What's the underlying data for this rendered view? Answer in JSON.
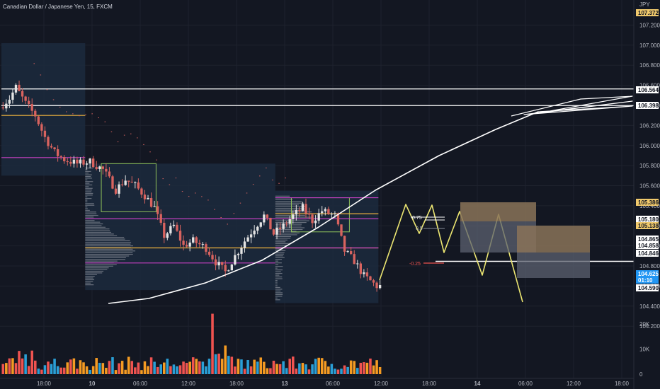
{
  "header": {
    "symbol_title": "Canadian Dollar / Japanese Yen, 15, FXCM"
  },
  "colors": {
    "background": "#131722",
    "grid": "#1e222d",
    "candle_up": "#e3e3e3",
    "candle_down": "#d8635f",
    "volume_blue": "#2a9fd6",
    "volume_red": "#ef5350",
    "volume_orange": "#f59b22",
    "yellow_line": "#ebe571",
    "orange_line": "#f0b33e",
    "magenta_line": "#c440c0",
    "white": "#ffffff"
  },
  "chart_data": {
    "type": "candlestick",
    "currency": "JPY",
    "price_axis": {
      "min": 104.3,
      "max": 107.45,
      "ticks": [
        "107.200",
        "107.000",
        "106.800",
        "106.600",
        "106.400",
        "106.200",
        "106.000",
        "105.800",
        "105.600",
        "105.400",
        "105.200",
        "105.000",
        "104.800",
        "104.600",
        "104.400",
        "104.200"
      ]
    },
    "volume_axis": {
      "ticks": [
        "20K",
        "10K",
        "0"
      ]
    },
    "time_axis": {
      "labels": [
        "18:00",
        "10",
        "06:00",
        "12:00",
        "18:00",
        "13",
        "06:00",
        "12:00",
        "18:00",
        "14",
        "06:00",
        "12:00",
        "18:00"
      ]
    },
    "price_tags": [
      {
        "label": "107.372",
        "value": 107.372,
        "bg": "#f0c96c",
        "fg": "#131722"
      },
      {
        "label": "106.564",
        "value": 106.564,
        "bg": "#ffffff",
        "fg": "#131722"
      },
      {
        "label": "106.398",
        "value": 106.398,
        "bg": "#ffffff",
        "fg": "#131722"
      },
      {
        "label": "105.386",
        "value": 105.386,
        "bg": "#f0c96c",
        "fg": "#131722"
      },
      {
        "label": "105.180",
        "value": 105.18,
        "bg": "#ffffff",
        "fg": "#131722"
      },
      {
        "label": "105.138",
        "value": 105.138,
        "bg": "#f0c96c",
        "fg": "#131722"
      },
      {
        "label": "104.865",
        "value": 104.865,
        "bg": "#ffffff",
        "fg": "#131722"
      },
      {
        "label": "104.858",
        "value": 104.858,
        "bg": "#ffffff",
        "fg": "#131722"
      },
      {
        "label": "104.846",
        "value": 104.846,
        "bg": "#ffffff",
        "fg": "#131722"
      },
      {
        "label": "104.625",
        "value": 104.625,
        "bg": "#2196f3",
        "fg": "#ffffff"
      },
      {
        "label": "01:10",
        "value": 104.61,
        "bg": "#2196f3",
        "fg": "#ffffff",
        "small": true
      },
      {
        "label": "104.590",
        "value": 104.59,
        "bg": "#ffffff",
        "fg": "#131722"
      }
    ],
    "fib_labels": [
      {
        "label": "0.75",
        "value": 105.2
      },
      {
        "label": "0.5",
        "value": 105.03
      },
      {
        "label": "-0.25",
        "value": 104.73
      }
    ],
    "horizontal_levels": [
      {
        "value": 106.564,
        "color": "white",
        "from_bar": 0,
        "to_end": true
      },
      {
        "value": 106.398,
        "color": "white",
        "from_bar": 0,
        "to_end": true
      },
      {
        "value": 106.3,
        "color": "orange",
        "from_bar": 0,
        "to_bar": 26
      },
      {
        "value": 105.88,
        "color": "magenta",
        "from_bar": 0,
        "to_bar": 26
      },
      {
        "value": 105.27,
        "color": "magenta",
        "from_bar": 26,
        "to_bar": 117
      },
      {
        "value": 104.98,
        "color": "orange",
        "from_bar": 26,
        "to_bar": 117
      },
      {
        "value": 104.83,
        "color": "magenta",
        "from_bar": 26,
        "to_bar": 85
      },
      {
        "value": 105.48,
        "color": "magenta",
        "from_bar": 85,
        "to_bar": 117
      },
      {
        "value": 105.32,
        "color": "orange",
        "from_bar": 85,
        "to_bar": 117
      },
      {
        "value": 104.98,
        "color": "magenta",
        "from_bar": 85,
        "to_bar": 117
      }
    ],
    "candles": []
  }
}
